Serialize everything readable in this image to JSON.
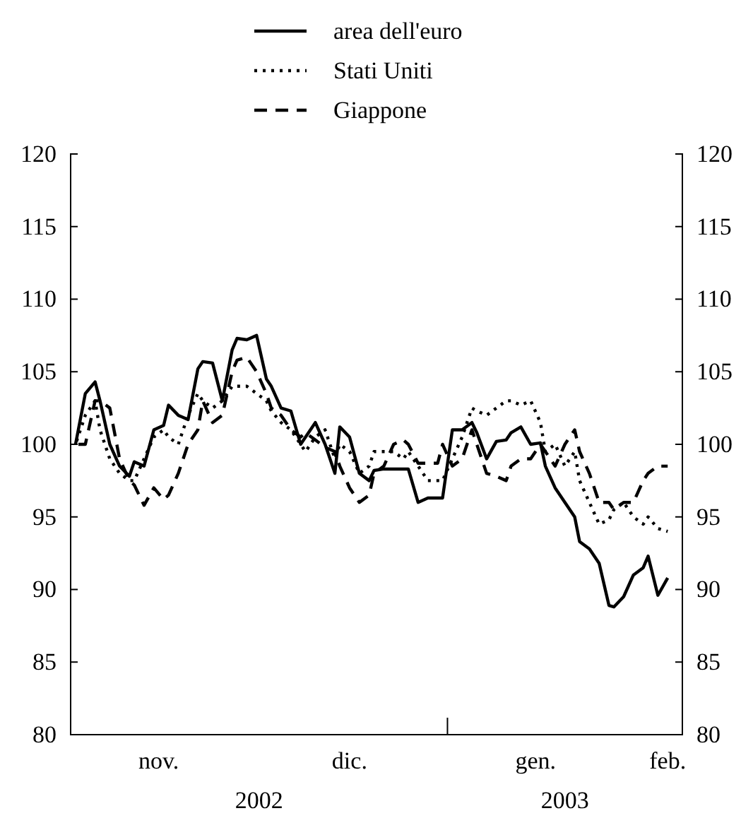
{
  "chart_data": {
    "type": "line",
    "x": [
      "2002-10-17",
      "2002-10-19",
      "2002-10-21",
      "2002-10-22",
      "2002-10-24",
      "2002-10-26",
      "2002-10-28",
      "2002-10-29",
      "2002-10-31",
      "2002-11-02",
      "2002-11-04",
      "2002-11-05",
      "2002-11-07",
      "2002-11-09",
      "2002-11-11",
      "2002-11-12",
      "2002-11-14",
      "2002-11-16",
      "2002-11-18",
      "2002-11-19",
      "2002-11-21",
      "2002-11-23",
      "2002-11-25",
      "2002-11-26",
      "2002-11-28",
      "2002-11-30",
      "2002-12-02",
      "2002-12-03",
      "2002-12-05",
      "2002-12-07",
      "2002-12-09",
      "2002-12-10",
      "2002-12-12",
      "2002-12-14",
      "2002-12-16",
      "2002-12-17",
      "2002-12-19",
      "2002-12-21",
      "2002-12-23",
      "2002-12-24",
      "2002-12-26",
      "2002-12-28",
      "2002-12-30",
      "2002-12-31",
      "2003-01-02",
      "2003-01-04",
      "2003-01-06",
      "2003-01-07",
      "2003-01-09",
      "2003-01-11",
      "2003-01-13",
      "2003-01-14",
      "2003-01-16",
      "2003-01-18",
      "2003-01-20",
      "2003-01-21",
      "2003-01-23",
      "2003-01-25",
      "2003-01-27",
      "2003-01-28",
      "2003-01-30",
      "2003-02-01",
      "2003-02-03",
      "2003-02-04",
      "2003-02-06",
      "2003-02-08",
      "2003-02-10",
      "2003-02-11",
      "2003-02-13",
      "2003-02-15"
    ],
    "series": [
      {
        "name": "area dell'euro",
        "color": "#000000",
        "line_style": "solid",
        "values": [
          100,
          103.5,
          104.3,
          103,
          100,
          98.5,
          97.8,
          98.8,
          98.5,
          101,
          101.3,
          102.7,
          102,
          101.7,
          105.2,
          105.7,
          105.6,
          103,
          106.5,
          107.3,
          107.2,
          107.5,
          104.5,
          104,
          102.5,
          102.3,
          100,
          100.5,
          101.5,
          100,
          98,
          101.2,
          100.5,
          98,
          97.5,
          98.2,
          98.3,
          98.3,
          98.3,
          98.3,
          96,
          96.3,
          96.3,
          96.3,
          101,
          101,
          101.5,
          100.8,
          99,
          100.2,
          100.3,
          100.8,
          101.2,
          100,
          100.1,
          98.5,
          97,
          96,
          95,
          93.3,
          92.8,
          91.8,
          88.9,
          88.8,
          89.5,
          91,
          91.5,
          92.3,
          89.6,
          90.8
        ]
      },
      {
        "name": "Stati Uniti",
        "color": "#000000",
        "line_style": "dotted",
        "values": [
          100,
          102,
          103,
          101,
          99,
          98,
          97.5,
          97.5,
          99,
          100.5,
          101,
          100.5,
          100,
          102,
          103.5,
          103,
          102.5,
          103,
          104,
          104,
          104,
          103.5,
          103,
          102.3,
          101.5,
          101,
          100,
          99.5,
          100.5,
          101,
          99,
          100,
          99.5,
          98,
          98.5,
          99.5,
          99.5,
          99.5,
          99,
          99.5,
          98.5,
          97.5,
          97.5,
          97.5,
          99,
          100.5,
          102.5,
          102.3,
          102,
          102.5,
          103,
          103,
          102.7,
          103,
          101.5,
          99.5,
          100,
          98.5,
          99.5,
          97.5,
          96,
          94.5,
          94.8,
          95.5,
          96,
          95,
          94.5,
          95,
          94.2,
          94
        ]
      },
      {
        "name": "Giappone",
        "color": "#000000",
        "line_style": "dashed",
        "values": [
          100,
          100,
          103,
          103,
          102.5,
          99,
          97.5,
          97.2,
          95.8,
          97,
          96.2,
          96.5,
          98,
          100,
          101,
          103,
          101.5,
          102,
          105,
          105.8,
          106,
          105,
          103.5,
          102.5,
          102,
          101,
          100.5,
          100.8,
          100.3,
          99.8,
          99.5,
          98.5,
          97,
          96,
          96.5,
          98,
          98.5,
          100,
          100.3,
          100,
          98.7,
          98.7,
          98.7,
          100,
          98.5,
          99,
          101,
          100,
          98,
          97.8,
          97.5,
          98.5,
          99,
          99,
          100,
          99.5,
          98.5,
          100,
          101,
          99.5,
          98,
          96,
          96,
          95.5,
          96,
          96,
          97.5,
          98,
          98.5,
          98.5
        ]
      }
    ],
    "xlim": [
      "2002-10-16",
      "2003-02-18"
    ],
    "xticks": [
      {
        "value": "2002-11-03",
        "label": "nov."
      },
      {
        "value": "2002-12-12",
        "label": "dic."
      },
      {
        "value": "2003-01-01",
        "label": null
      },
      {
        "value": "2003-01-19",
        "label": "gen."
      },
      {
        "value": "2003-02-15",
        "label": "feb."
      }
    ],
    "ylim": [
      80,
      120
    ],
    "yticks": [
      80,
      85,
      90,
      95,
      100,
      105,
      110,
      115,
      120
    ],
    "y2lim": [
      80,
      120
    ],
    "y2ticks": [
      80,
      85,
      90,
      95,
      100,
      105,
      110,
      115,
      120
    ],
    "annotations": [
      "2002",
      "2003"
    ],
    "legend": "top",
    "grid": false,
    "marker": "none"
  }
}
